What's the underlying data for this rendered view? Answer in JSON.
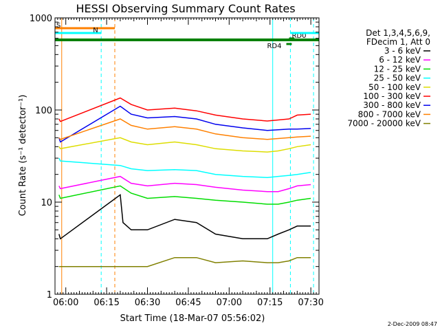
{
  "chart_data": {
    "type": "line",
    "title": "HESSI Observing Summary Count Rates",
    "xlabel": "Start Time (18-Mar-07 05:56:02)",
    "ylabel": "Count Rate (s⁻¹ detector⁻¹)",
    "yscale": "log",
    "ylim": [
      1,
      1000
    ],
    "xlim": [
      "05:56:02",
      "07:33:00"
    ],
    "x_ticks": [
      "06:00",
      "06:15",
      "06:30",
      "06:45",
      "07:00",
      "07:15",
      "07:30"
    ],
    "y_ticks": [
      "1",
      "10",
      "100",
      "1000"
    ],
    "grid": false,
    "legend_position": "right",
    "legend_header": [
      "Det 1,3,4,5,6,9,",
      "FDecim 1, Att 0"
    ],
    "series": [
      {
        "name": "3 - 6 keV",
        "color": "#000000",
        "x": [
          "05:57:30",
          "05:58:00",
          "06:20:00",
          "06:21:00",
          "06:24:00",
          "06:30:00",
          "06:40:00",
          "06:48:00",
          "06:55:00",
          "07:05:00",
          "07:14:00",
          "07:18:00",
          "07:22:00",
          "07:25:00",
          "07:30:00"
        ],
        "y": [
          4.5,
          4.0,
          12,
          6.0,
          5.0,
          5.0,
          6.5,
          6.0,
          4.5,
          4.0,
          4.0,
          4.5,
          5.0,
          5.5,
          5.5
        ]
      },
      {
        "name": "6 - 12 keV",
        "color": "#ff00ff",
        "x": [
          "05:57:30",
          "05:58:00",
          "06:20:00",
          "06:24:00",
          "06:30:00",
          "06:40:00",
          "06:48:00",
          "06:55:00",
          "07:05:00",
          "07:14:00",
          "07:18:00",
          "07:22:00",
          "07:25:00",
          "07:30:00"
        ],
        "y": [
          15,
          14,
          19,
          16,
          15,
          16,
          15.5,
          14.5,
          13.5,
          13,
          13,
          14,
          15,
          15.5
        ]
      },
      {
        "name": "12 - 25 keV",
        "color": "#00dd00",
        "x": [
          "05:57:30",
          "05:58:00",
          "06:20:00",
          "06:24:00",
          "06:30:00",
          "06:40:00",
          "06:48:00",
          "06:55:00",
          "07:05:00",
          "07:14:00",
          "07:18:00",
          "07:22:00",
          "07:25:00",
          "07:30:00"
        ],
        "y": [
          12,
          11,
          15,
          12.5,
          11,
          11.5,
          11,
          10.5,
          10,
          9.5,
          9.5,
          10,
          10.5,
          11
        ]
      },
      {
        "name": "25 - 50 keV",
        "color": "#00ffff",
        "x": [
          "05:57:30",
          "05:58:00",
          "06:20:00",
          "06:24:00",
          "06:30:00",
          "06:40:00",
          "06:48:00",
          "06:55:00",
          "07:05:00",
          "07:14:00",
          "07:18:00",
          "07:22:00",
          "07:25:00",
          "07:30:00"
        ],
        "y": [
          30,
          28,
          25,
          23,
          22,
          22.5,
          22,
          20,
          19,
          18.5,
          19,
          19.5,
          20,
          21
        ]
      },
      {
        "name": "50 - 100 keV",
        "color": "#dddd00",
        "x": [
          "05:57:30",
          "05:58:00",
          "06:20:00",
          "06:24:00",
          "06:30:00",
          "06:40:00",
          "06:48:00",
          "06:55:00",
          "07:05:00",
          "07:14:00",
          "07:18:00",
          "07:22:00",
          "07:25:00",
          "07:30:00"
        ],
        "y": [
          40,
          38,
          50,
          45,
          42,
          45,
          42,
          38,
          36,
          35,
          36,
          38,
          40,
          42
        ]
      },
      {
        "name": "100 - 300 keV",
        "color": "#ff0000",
        "x": [
          "05:57:30",
          "05:58:00",
          "06:20:00",
          "06:24:00",
          "06:30:00",
          "06:40:00",
          "06:48:00",
          "06:55:00",
          "07:05:00",
          "07:14:00",
          "07:18:00",
          "07:22:00",
          "07:25:00",
          "07:30:00"
        ],
        "y": [
          80,
          75,
          135,
          115,
          100,
          105,
          98,
          88,
          80,
          76,
          78,
          80,
          88,
          90
        ]
      },
      {
        "name": "300 - 800 keV",
        "color": "#0000ee",
        "x": [
          "05:57:30",
          "05:58:00",
          "06:20:00",
          "06:24:00",
          "06:30:00",
          "06:40:00",
          "06:48:00",
          "06:55:00",
          "07:05:00",
          "07:14:00",
          "07:18:00",
          "07:22:00",
          "07:25:00",
          "07:30:00"
        ],
        "y": [
          50,
          45,
          110,
          90,
          82,
          85,
          80,
          70,
          64,
          60,
          61,
          62,
          62,
          63
        ]
      },
      {
        "name": "800 - 7000 keV",
        "color": "#ff8000",
        "x": [
          "05:57:30",
          "05:58:00",
          "06:20:00",
          "06:24:00",
          "06:30:00",
          "06:40:00",
          "06:48:00",
          "06:55:00",
          "07:05:00",
          "07:14:00",
          "07:18:00",
          "07:22:00",
          "07:25:00",
          "07:30:00"
        ],
        "y": [
          50,
          48,
          80,
          68,
          62,
          66,
          62,
          55,
          50,
          48,
          49,
          50,
          51,
          52
        ]
      },
      {
        "name": "7000 - 20000 keV",
        "color": "#808000",
        "x": [
          "05:57:30",
          "05:58:00",
          "06:20:00",
          "06:30:00",
          "06:40:00",
          "06:48:00",
          "06:55:00",
          "07:05:00",
          "07:14:00",
          "07:18:00",
          "07:22:00",
          "07:25:00",
          "07:30:00"
        ],
        "y": [
          2,
          2,
          2,
          2,
          2.5,
          2.5,
          2.2,
          2.3,
          2.2,
          2.2,
          2.3,
          2.5,
          2.5
        ]
      }
    ],
    "flags": [
      {
        "label": "S",
        "color": "#ff8000",
        "x_start": "05:56:02",
        "x_end": "06:18:00"
      },
      {
        "label": "N",
        "color": "#00ffff",
        "x_start": "05:56:02",
        "x_end": "06:13:00"
      },
      {
        "label": "",
        "color": "#008000",
        "x_start": "05:56:02",
        "x_end": "07:33:00"
      },
      {
        "label": "RD4",
        "color": "#008000",
        "x_start": "07:21:00",
        "x_end": "07:23:00"
      },
      {
        "label": "RD0",
        "color": "#008000",
        "x_start": "07:22:00",
        "x_end": "07:24:00"
      },
      {
        "label": "",
        "color": "#00ffff",
        "x_start": "07:22:30",
        "x_end": "07:33:00"
      }
    ],
    "vertical_markers": [
      {
        "x": "05:56:02",
        "color": "#00ffff",
        "style": "solid"
      },
      {
        "x": "05:58:30",
        "color": "#ff8000",
        "style": "solid"
      },
      {
        "x": "06:13:00",
        "color": "#00ffff",
        "style": "dashed"
      },
      {
        "x": "06:18:00",
        "color": "#ff8000",
        "style": "dashed"
      },
      {
        "x": "07:16:00",
        "color": "#00ffff",
        "style": "solid"
      },
      {
        "x": "07:22:30",
        "color": "#00ffff",
        "style": "dashed"
      },
      {
        "x": "07:31:00",
        "color": "#00ffff",
        "style": "dashed"
      }
    ]
  },
  "footer": {
    "timestamp": "2-Dec-2009 08:47"
  }
}
